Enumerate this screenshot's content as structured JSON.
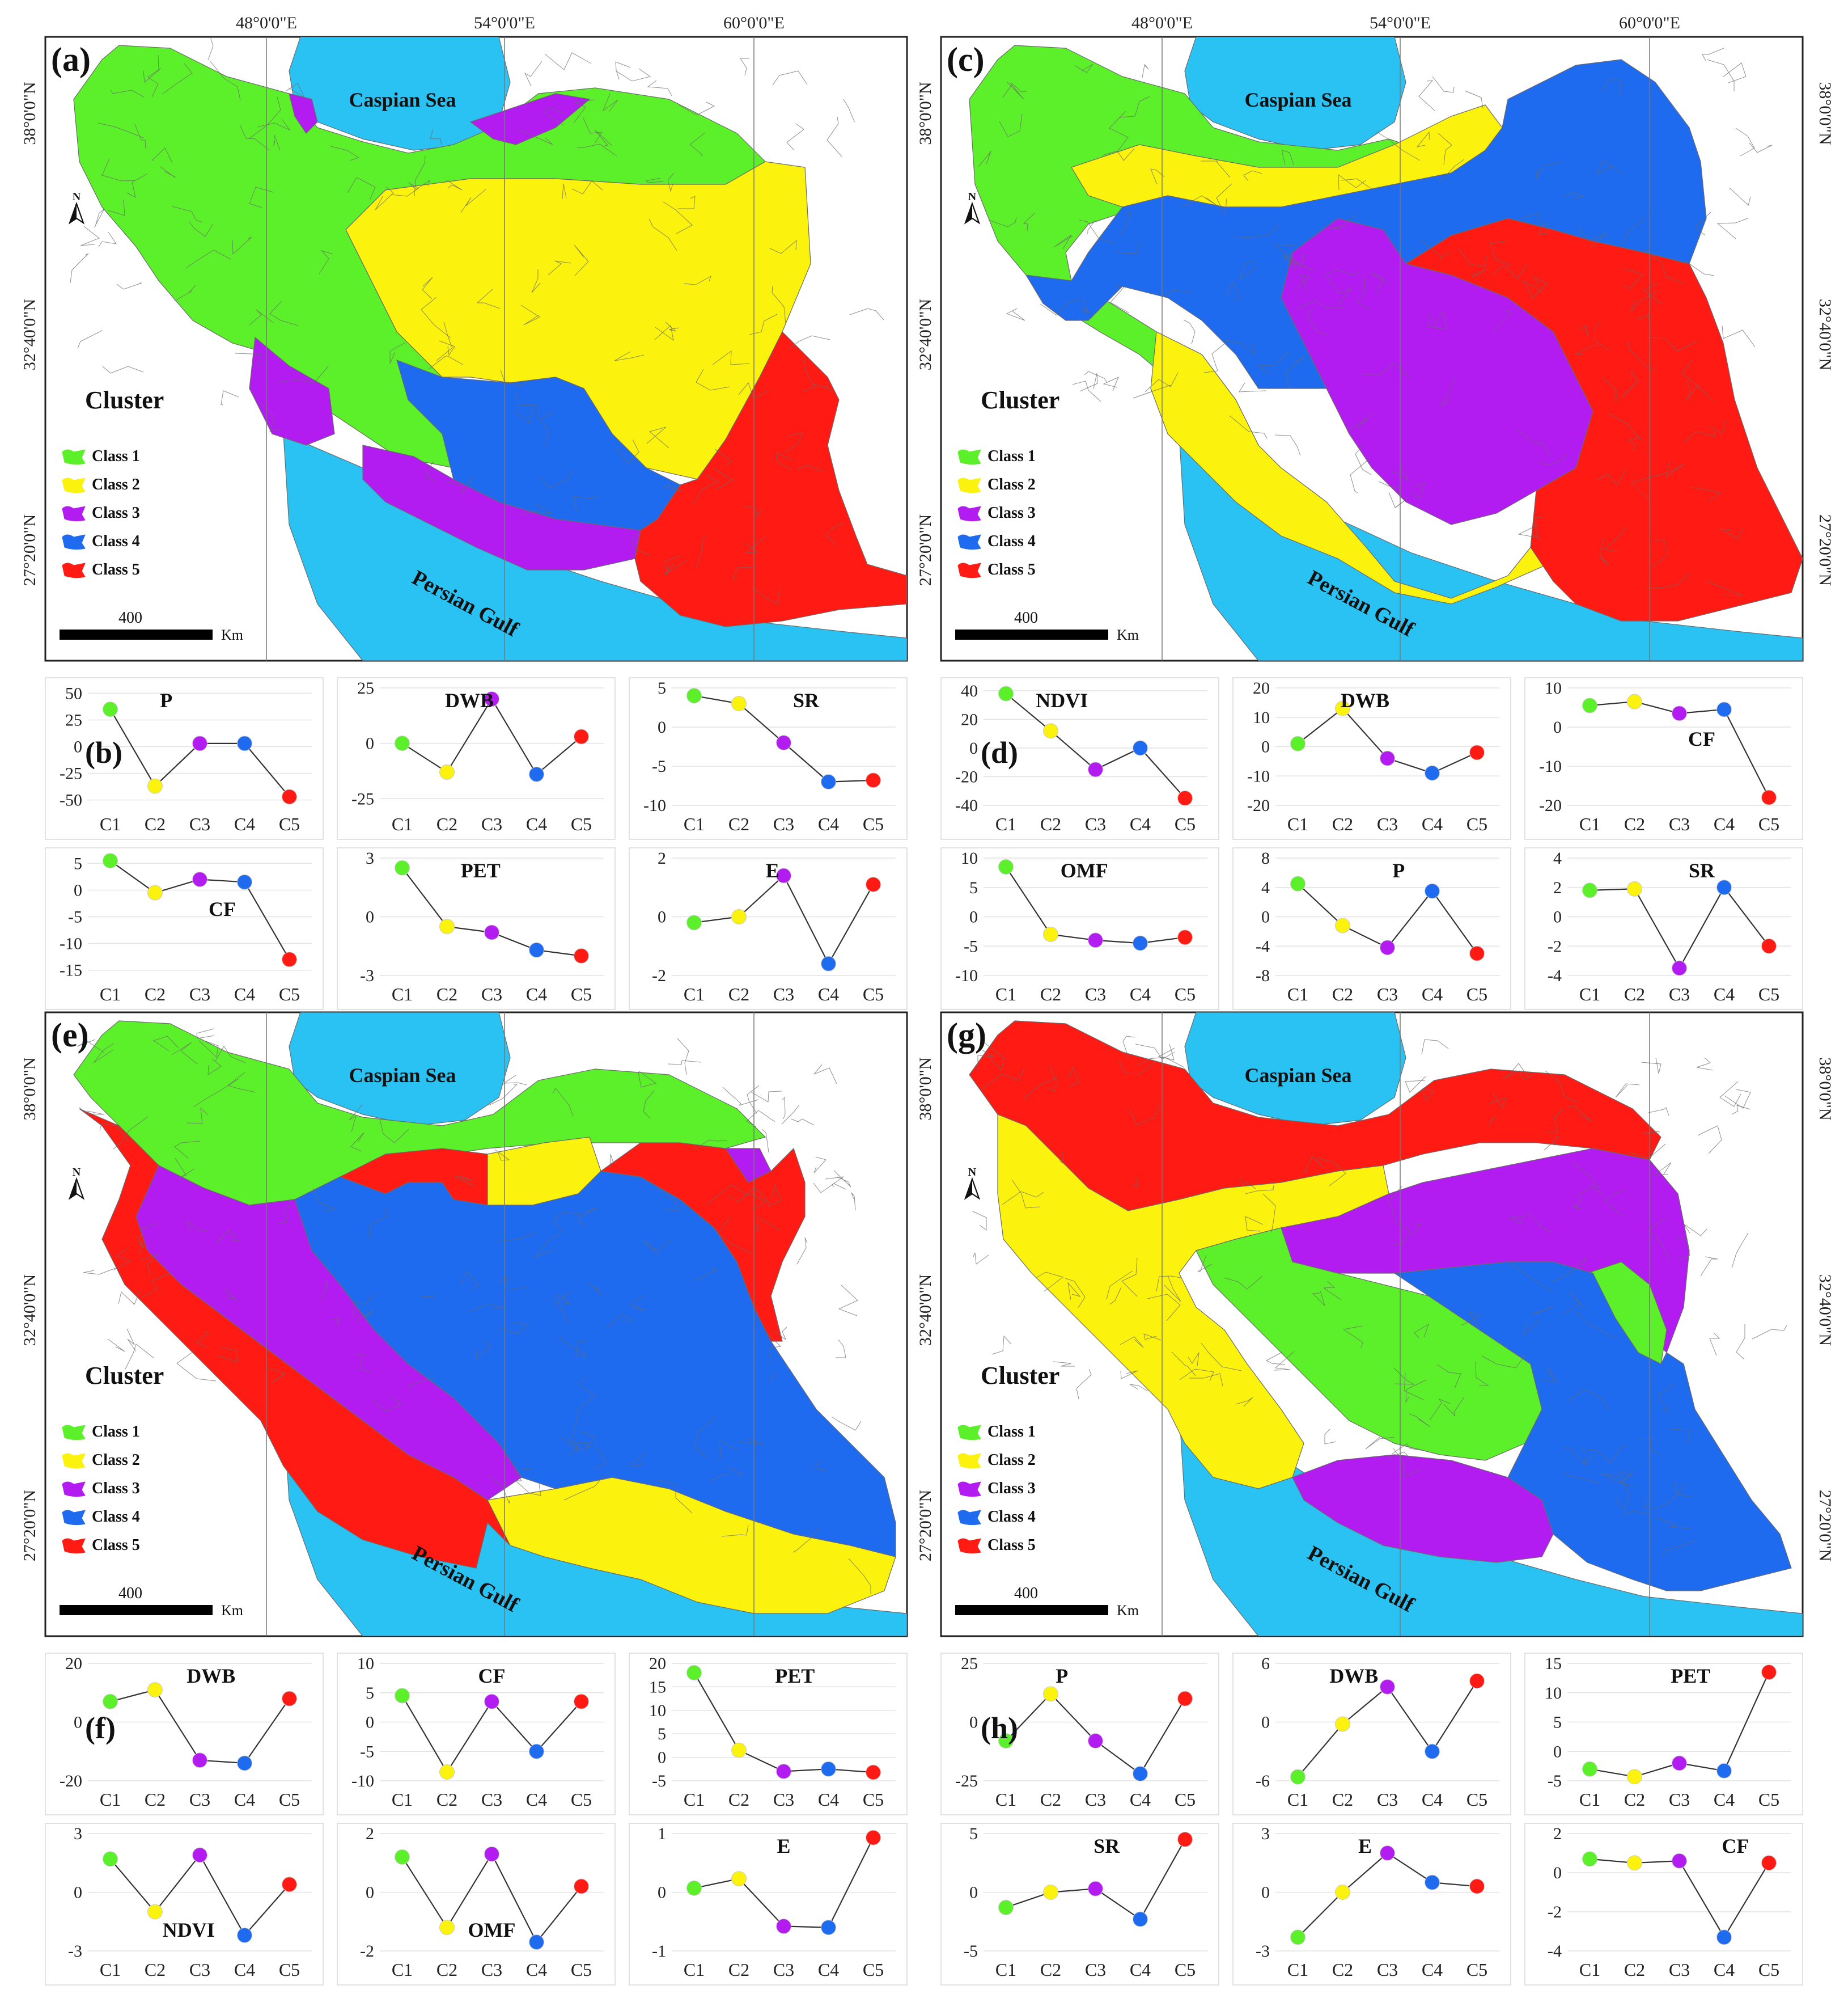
{
  "palette": {
    "sea": "#29c2f2",
    "class1": "#5cf02a",
    "class2": "#fbf20e",
    "class3": "#b31cf0",
    "class4": "#1f6bf0",
    "class5": "#ff1a14",
    "boundary": "#6a6a6a"
  },
  "labels": {
    "panel_a": "(a)",
    "panel_b": "(b)",
    "panel_c": "(c)",
    "panel_d": "(d)",
    "panel_e": "(e)",
    "panel_f": "(f)",
    "panel_g": "(g)",
    "panel_h": "(h)",
    "caspian": "Caspian Sea",
    "gulf": "Persian Gulf",
    "cluster": "Cluster",
    "class_1": "Class 1",
    "class_2": "Class 2",
    "class_3": "Class 3",
    "class_4": "Class 4",
    "class_5": "Class 5",
    "scale_value": "400",
    "scale_unit": "Km",
    "north": "N",
    "lon_48": "48°0'0\"E",
    "lon_54": "54°0'0\"E",
    "lon_60": "60°0'0\"E",
    "lat_38": "38°0'0\"N",
    "lat_32": "32°40'0\"N",
    "lat_27": "27°20'0\"N"
  },
  "chart_data": [
    {
      "type": "line",
      "group": "(b)",
      "title": "P",
      "categories": [
        "C1",
        "C2",
        "C3",
        "C4",
        "C5"
      ],
      "values": [
        35,
        -37,
        3,
        3,
        -47
      ],
      "yticks": [
        50,
        25,
        0,
        -25,
        -50
      ],
      "ylim": [
        -55,
        55
      ]
    },
    {
      "type": "line",
      "group": "(b)",
      "title": "DWB",
      "categories": [
        "C1",
        "C2",
        "C3",
        "C4",
        "C5"
      ],
      "values": [
        0,
        -13,
        20,
        -14,
        3
      ],
      "yticks": [
        25,
        0,
        -25
      ],
      "ylim": [
        -28,
        25
      ]
    },
    {
      "type": "line",
      "group": "(b)",
      "title": "SR",
      "categories": [
        "C1",
        "C2",
        "C3",
        "C4",
        "C5"
      ],
      "values": [
        4,
        3,
        -2,
        -7,
        -6.8
      ],
      "yticks": [
        5,
        0,
        -5,
        -10
      ],
      "ylim": [
        -10,
        5
      ]
    },
    {
      "type": "line",
      "group": "(b)",
      "title": "CF",
      "categories": [
        "C1",
        "C2",
        "C3",
        "C4",
        "C5"
      ],
      "values": [
        5.5,
        -0.5,
        2,
        1.5,
        -13
      ],
      "yticks": [
        5,
        0,
        -5,
        -10,
        -15
      ],
      "ylim": [
        -16,
        6
      ]
    },
    {
      "type": "line",
      "group": "(b)",
      "title": "PET",
      "categories": [
        "C1",
        "C2",
        "C3",
        "C4",
        "C5"
      ],
      "values": [
        2.5,
        -0.5,
        -0.8,
        -1.7,
        -2
      ],
      "yticks": [
        3,
        0,
        -3
      ],
      "ylim": [
        -3,
        3
      ]
    },
    {
      "type": "line",
      "group": "(b)",
      "title": "E",
      "categories": [
        "C1",
        "C2",
        "C3",
        "C4",
        "C5"
      ],
      "values": [
        -0.2,
        0,
        1.4,
        -1.6,
        1.1
      ],
      "yticks": [
        2,
        0,
        -2
      ],
      "ylim": [
        -2,
        2
      ]
    },
    {
      "type": "line",
      "group": "(d)",
      "title": "NDVI",
      "categories": [
        "C1",
        "C2",
        "C3",
        "C4",
        "C5"
      ],
      "values": [
        38,
        12,
        -15,
        0,
        -35
      ],
      "yticks": [
        40,
        20,
        0,
        -20,
        -40
      ],
      "ylim": [
        -40,
        42
      ]
    },
    {
      "type": "line",
      "group": "(d)",
      "title": "DWB",
      "categories": [
        "C1",
        "C2",
        "C3",
        "C4",
        "C5"
      ],
      "values": [
        1,
        13,
        -4,
        -9,
        -2
      ],
      "yticks": [
        20,
        10,
        0,
        -10,
        -20
      ],
      "ylim": [
        -20,
        20
      ]
    },
    {
      "type": "line",
      "group": "(d)",
      "title": "CF",
      "categories": [
        "C1",
        "C2",
        "C3",
        "C4",
        "C5"
      ],
      "values": [
        5.5,
        6.5,
        3.5,
        4.5,
        -18
      ],
      "yticks": [
        10,
        0,
        -10,
        -20
      ],
      "ylim": [
        -20,
        10
      ]
    },
    {
      "type": "line",
      "group": "(d)",
      "title": "OMF",
      "categories": [
        "C1",
        "C2",
        "C3",
        "C4",
        "C5"
      ],
      "values": [
        8.5,
        -3,
        -4,
        -4.5,
        -3.5
      ],
      "yticks": [
        10,
        5,
        0,
        -5,
        -10
      ],
      "ylim": [
        -10,
        10
      ]
    },
    {
      "type": "line",
      "group": "(d)",
      "title": "P",
      "categories": [
        "C1",
        "C2",
        "C3",
        "C4",
        "C5"
      ],
      "values": [
        4.5,
        -1.2,
        -4.2,
        3.5,
        -5
      ],
      "yticks": [
        8,
        4,
        0,
        -4,
        -8
      ],
      "ylim": [
        -8,
        8
      ]
    },
    {
      "type": "line",
      "group": "(d)",
      "title": "SR",
      "categories": [
        "C1",
        "C2",
        "C3",
        "C4",
        "C5"
      ],
      "values": [
        1.8,
        1.9,
        -3.5,
        2,
        -2
      ],
      "yticks": [
        4,
        2,
        0,
        -2,
        -4
      ],
      "ylim": [
        -4,
        4
      ]
    },
    {
      "type": "line",
      "group": "(f)",
      "title": "DWB",
      "categories": [
        "C1",
        "C2",
        "C3",
        "C4",
        "C5"
      ],
      "values": [
        7,
        11,
        -13,
        -14,
        8
      ],
      "yticks": [
        20,
        0,
        -20
      ],
      "ylim": [
        -20,
        20
      ]
    },
    {
      "type": "line",
      "group": "(f)",
      "title": "CF",
      "categories": [
        "C1",
        "C2",
        "C3",
        "C4",
        "C5"
      ],
      "values": [
        4.5,
        -8.5,
        3.5,
        -5,
        3.5
      ],
      "yticks": [
        10,
        5,
        0,
        -5,
        -10
      ],
      "ylim": [
        -10,
        10
      ]
    },
    {
      "type": "line",
      "group": "(f)",
      "title": "PET",
      "categories": [
        "C1",
        "C2",
        "C3",
        "C4",
        "C5"
      ],
      "values": [
        18,
        1.5,
        -3,
        -2.5,
        -3.2
      ],
      "yticks": [
        20,
        15,
        10,
        5,
        0,
        -5
      ],
      "ylim": [
        -5,
        20
      ]
    },
    {
      "type": "line",
      "group": "(f)",
      "title": "NDVI",
      "categories": [
        "C1",
        "C2",
        "C3",
        "C4",
        "C5"
      ],
      "values": [
        1.7,
        -1,
        1.9,
        -2.2,
        0.4
      ],
      "yticks": [
        3,
        0,
        -3
      ],
      "ylim": [
        -3,
        3
      ]
    },
    {
      "type": "line",
      "group": "(f)",
      "title": "OMF",
      "categories": [
        "C1",
        "C2",
        "C3",
        "C4",
        "C5"
      ],
      "values": [
        1.2,
        -1.2,
        1.3,
        -1.7,
        0.2
      ],
      "yticks": [
        2,
        0,
        -2
      ],
      "ylim": [
        -2,
        2
      ]
    },
    {
      "type": "line",
      "group": "(f)",
      "title": "E",
      "categories": [
        "C1",
        "C2",
        "C3",
        "C4",
        "C5"
      ],
      "values": [
        0.07,
        0.23,
        -0.58,
        -0.6,
        0.93
      ],
      "yticks": [
        1,
        0,
        -1
      ],
      "ylim": [
        -1,
        1
      ]
    },
    {
      "type": "line",
      "group": "(h)",
      "title": "P",
      "categories": [
        "C1",
        "C2",
        "C3",
        "C4",
        "C5"
      ],
      "values": [
        -8,
        12,
        -8,
        -22,
        10
      ],
      "yticks": [
        25,
        0,
        -25
      ],
      "ylim": [
        -25,
        25
      ]
    },
    {
      "type": "line",
      "group": "(h)",
      "title": "DWB",
      "categories": [
        "C1",
        "C2",
        "C3",
        "C4",
        "C5"
      ],
      "values": [
        -5.6,
        -0.2,
        3.6,
        -3,
        4.2
      ],
      "yticks": [
        6,
        0,
        -6
      ],
      "ylim": [
        -6,
        6
      ]
    },
    {
      "type": "line",
      "group": "(h)",
      "title": "PET",
      "categories": [
        "C1",
        "C2",
        "C3",
        "C4",
        "C5"
      ],
      "values": [
        -3,
        -4.3,
        -2,
        -3.3,
        13.5
      ],
      "yticks": [
        15,
        10,
        5,
        0,
        -5
      ],
      "ylim": [
        -5,
        15
      ]
    },
    {
      "type": "line",
      "group": "(h)",
      "title": "SR",
      "categories": [
        "C1",
        "C2",
        "C3",
        "C4",
        "C5"
      ],
      "values": [
        -1.3,
        0,
        0.3,
        -2.3,
        4.5
      ],
      "yticks": [
        5,
        0,
        -5
      ],
      "ylim": [
        -5,
        5
      ]
    },
    {
      "type": "line",
      "group": "(h)",
      "title": "E",
      "categories": [
        "C1",
        "C2",
        "C3",
        "C4",
        "C5"
      ],
      "values": [
        -2.3,
        0,
        2,
        0.5,
        0.3
      ],
      "yticks": [
        3,
        0,
        -3
      ],
      "ylim": [
        -3,
        3
      ]
    },
    {
      "type": "line",
      "group": "(h)",
      "title": "CF",
      "categories": [
        "C1",
        "C2",
        "C3",
        "C4",
        "C5"
      ],
      "values": [
        0.7,
        0.5,
        0.6,
        -3.3,
        0.5
      ],
      "yticks": [
        2,
        0,
        -2,
        -4
      ],
      "ylim": [
        -4,
        2
      ]
    }
  ]
}
